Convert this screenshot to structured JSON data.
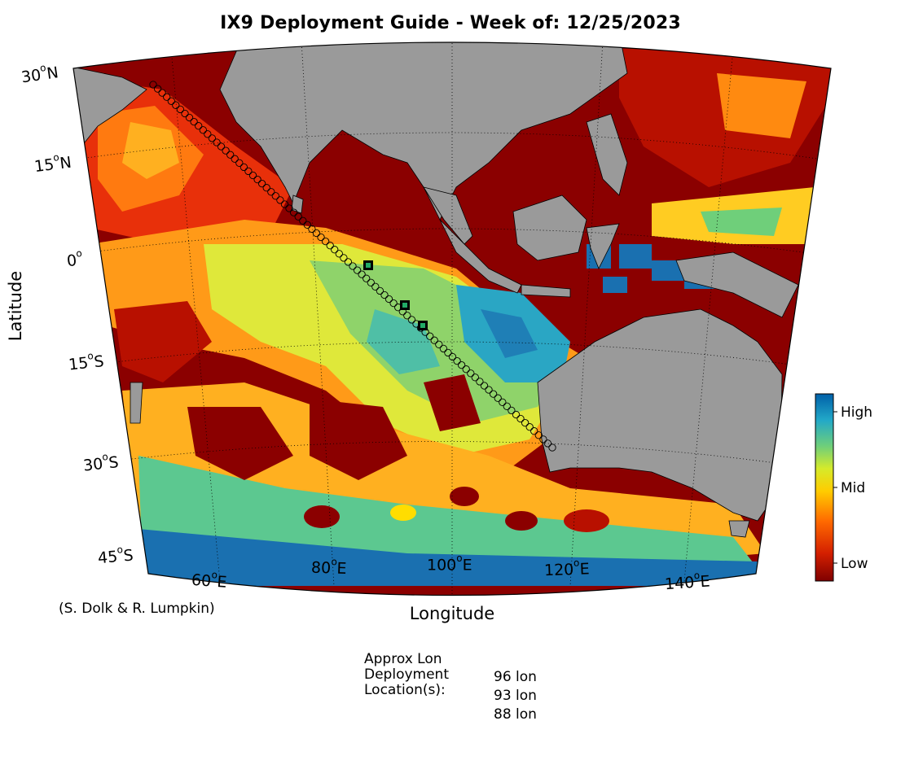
{
  "title": "IX9 Deployment Guide - Week of: 12/25/2023",
  "axis": {
    "xlabel": "Longitude",
    "ylabel": "Latitude",
    "lat_ticks": [
      {
        "num": "30",
        "hemi": "N"
      },
      {
        "num": "15",
        "hemi": "N"
      },
      {
        "num": "0",
        "hemi": ""
      },
      {
        "num": "15",
        "hemi": "S"
      },
      {
        "num": "30",
        "hemi": "S"
      },
      {
        "num": "45",
        "hemi": "S"
      }
    ],
    "lon_ticks": [
      {
        "num": "60",
        "hemi": "E"
      },
      {
        "num": "80",
        "hemi": "E"
      },
      {
        "num": "100",
        "hemi": "E"
      },
      {
        "num": "120",
        "hemi": "E"
      },
      {
        "num": "140",
        "hemi": "E"
      }
    ]
  },
  "credit": "(S. Dolk & R. Lumpkin)",
  "colorbar": {
    "high": "High",
    "mid": "Mid",
    "low": "Low",
    "colors": [
      "#7f0000",
      "#ff3300",
      "#ff8800",
      "#ffdd00",
      "#ccee33",
      "#66cc88",
      "#22aacc",
      "#0066aa"
    ]
  },
  "deployment": {
    "label_lines": [
      "Approx Lon",
      "Deployment",
      "Location(s):"
    ],
    "values": [
      "96 lon",
      "93 lon",
      "88 lon"
    ]
  },
  "colors": {
    "land": "#9a9a9a",
    "low": "#8b0000",
    "high": "#1e73b4"
  }
}
